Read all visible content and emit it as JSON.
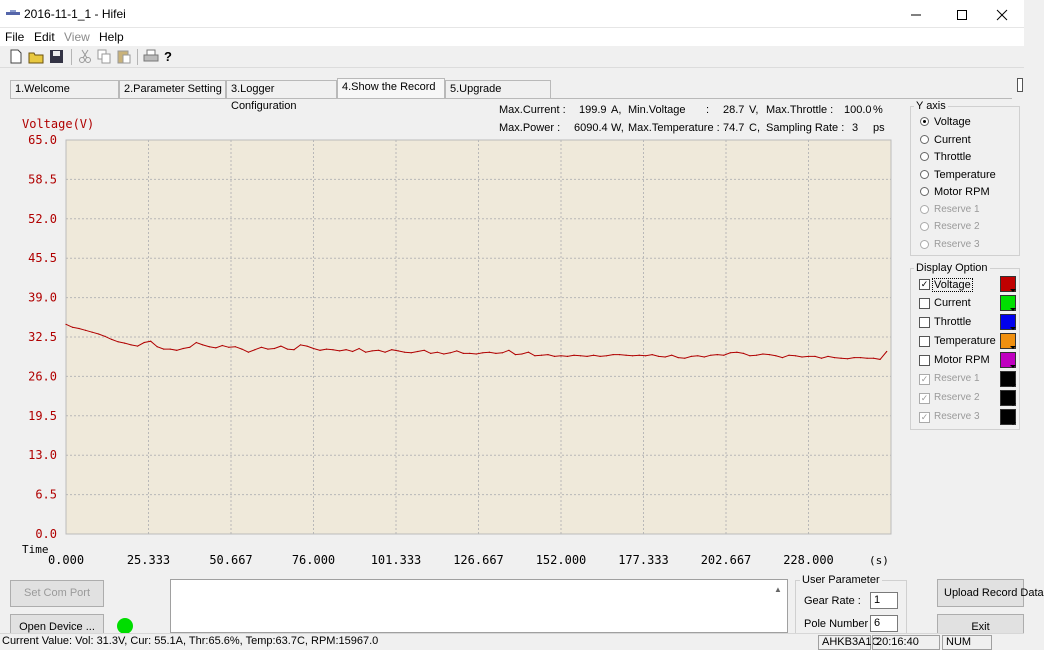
{
  "window": {
    "title": "2016-11-1_1 - Hifei",
    "minimize_icon": "minimize-icon",
    "maximize_icon": "maximize-icon",
    "close_icon": "close-icon"
  },
  "menu": [
    "File",
    "Edit",
    "View",
    "Help"
  ],
  "toolbar_icons": [
    "new-file-icon",
    "open-folder-icon",
    "save-icon",
    "cut-icon",
    "copy-icon",
    "paste-icon",
    "print-icon",
    "help-icon"
  ],
  "tabs": [
    {
      "label": "1.Welcome",
      "active": false
    },
    {
      "label": "2.Parameter Setting",
      "active": false
    },
    {
      "label": "3.Logger Configuration",
      "active": false
    },
    {
      "label": "4.Show the Record",
      "active": true
    },
    {
      "label": "5.Upgrade",
      "active": false
    }
  ],
  "stats": {
    "max_current_label": "Max.Current :",
    "max_current_value": "199.9",
    "max_current_unit": "A,",
    "min_voltage_label": "Min.Voltage",
    "min_voltage_colon": ":",
    "min_voltage_value": "28.7",
    "min_voltage_unit": "V,",
    "max_throttle_label": "Max.Throttle :",
    "max_throttle_value": "100.0",
    "max_throttle_unit": "%",
    "max_power_label": "Max.Power :",
    "max_power_value": "6090.4",
    "max_power_unit": "W,",
    "max_temp_label": "Max.Temperature :",
    "max_temp_value": "74.7",
    "max_temp_unit": "C,",
    "sampling_label": "Sampling Rate :",
    "sampling_value": "3",
    "sampling_unit": "ps"
  },
  "chart_data": {
    "type": "line",
    "ylabel": "Voltage(V)",
    "xlabel": "Time",
    "x_unit": "(s)",
    "yticks": [
      "65.0",
      "58.5",
      "52.0",
      "45.5",
      "39.0",
      "32.5",
      "26.0",
      "19.5",
      "13.0",
      "6.5",
      "0.0"
    ],
    "xticks": [
      "0.000",
      "25.333",
      "50.667",
      "76.000",
      "101.333",
      "126.667",
      "152.000",
      "177.333",
      "202.667",
      "228.000"
    ],
    "xlim": [
      0,
      253.333
    ],
    "ylim": [
      0,
      65.0
    ],
    "grid": true,
    "series": [
      {
        "name": "Voltage",
        "color": "#b00000",
        "x": [
          0,
          2,
          4,
          6,
          8,
          10,
          12,
          14,
          16,
          18,
          20,
          22,
          24,
          26,
          28,
          30,
          32,
          34,
          36,
          38,
          40,
          42,
          44,
          46,
          48,
          50,
          52,
          54,
          56,
          58,
          60,
          62,
          64,
          66,
          68,
          70,
          72,
          74,
          76,
          78,
          80,
          82,
          84,
          86,
          88,
          90,
          92,
          94,
          96,
          98,
          100,
          102,
          104,
          106,
          108,
          110,
          112,
          114,
          116,
          118,
          120,
          122,
          124,
          126,
          128,
          130,
          132,
          134,
          136,
          138,
          140,
          142,
          144,
          146,
          148,
          150,
          152,
          154,
          156,
          158,
          160,
          162,
          164,
          166,
          168,
          170,
          172,
          174,
          176,
          178,
          180,
          182,
          184,
          186,
          188,
          190,
          192,
          194,
          196,
          198,
          200,
          202,
          204,
          206,
          208,
          210,
          212,
          214,
          216,
          218,
          220,
          222,
          224,
          226,
          228,
          230,
          232,
          234,
          236,
          238,
          240,
          242,
          244,
          246,
          248,
          250,
          252
        ],
        "y": [
          34.6,
          34.1,
          33.9,
          33.6,
          33.3,
          33.0,
          32.6,
          32.1,
          31.7,
          31.5,
          31.2,
          31.0,
          31.6,
          31.8,
          30.9,
          30.5,
          30.5,
          30.3,
          30.6,
          30.8,
          31.6,
          31.2,
          30.9,
          30.7,
          31.1,
          30.8,
          30.9,
          30.5,
          30.0,
          30.4,
          30.8,
          30.5,
          30.6,
          31.0,
          30.5,
          30.4,
          31.2,
          31.0,
          30.6,
          30.3,
          30.5,
          30.4,
          30.2,
          30.4,
          30.1,
          30.6,
          30.0,
          30.2,
          30.3,
          30.0,
          30.4,
          30.2,
          30.0,
          29.9,
          30.1,
          30.3,
          29.8,
          30.0,
          29.7,
          29.9,
          30.2,
          29.8,
          29.8,
          29.7,
          29.9,
          30.0,
          29.8,
          29.9,
          30.3,
          29.6,
          29.7,
          30.0,
          29.4,
          29.5,
          29.6,
          29.3,
          29.4,
          29.3,
          29.5,
          29.4,
          29.3,
          29.5,
          29.3,
          29.4,
          29.6,
          29.6,
          29.5,
          29.4,
          29.5,
          29.4,
          29.6,
          29.3,
          29.2,
          29.5,
          29.1,
          29.0,
          29.3,
          29.4,
          29.2,
          29.5,
          29.6,
          29.5,
          29.9,
          30.0,
          29.8,
          29.4,
          29.5,
          29.7,
          29.6,
          29.4,
          29.1,
          29.5,
          29.4,
          29.2,
          29.3,
          29.3,
          29.0,
          29.3,
          29.1,
          29.0,
          28.9,
          29.1,
          29.1,
          29.0,
          29.0,
          28.8,
          30.1
        ]
      }
    ]
  },
  "y_axis": {
    "title": "Y axis",
    "options": [
      {
        "label": "Voltage",
        "selected": true,
        "enabled": true
      },
      {
        "label": "Current",
        "selected": false,
        "enabled": true
      },
      {
        "label": "Throttle",
        "selected": false,
        "enabled": true
      },
      {
        "label": "Temperature",
        "selected": false,
        "enabled": true
      },
      {
        "label": "Motor RPM",
        "selected": false,
        "enabled": true
      },
      {
        "label": "Reserve 1",
        "selected": false,
        "enabled": false
      },
      {
        "label": "Reserve 2",
        "selected": false,
        "enabled": false
      },
      {
        "label": "Reserve 3",
        "selected": false,
        "enabled": false
      }
    ]
  },
  "display_option": {
    "title": "Display Option",
    "items": [
      {
        "label": "Voltage",
        "checked": true,
        "enabled": true,
        "color": "#c00000"
      },
      {
        "label": "Current",
        "checked": false,
        "enabled": true,
        "color": "#00e000"
      },
      {
        "label": "Throttle",
        "checked": false,
        "enabled": true,
        "color": "#0000ee"
      },
      {
        "label": "Temperature",
        "checked": false,
        "enabled": true,
        "color": "#f09010"
      },
      {
        "label": "Motor RPM",
        "checked": false,
        "enabled": true,
        "color": "#c000c0"
      },
      {
        "label": "Reserve 1",
        "checked": true,
        "enabled": false,
        "color": "#000000"
      },
      {
        "label": "Reserve 2",
        "checked": true,
        "enabled": false,
        "color": "#000000"
      },
      {
        "label": "Reserve 3",
        "checked": true,
        "enabled": false,
        "color": "#000000"
      }
    ]
  },
  "bottom": {
    "set_com_port": "Set Com Port",
    "open_device": "Open Device ...",
    "status_light_color": "#00dd00",
    "user_param_title": "User Parameter",
    "gear_rate_label": "Gear Rate :",
    "gear_rate_value": "1",
    "pole_number_label": "Pole Number :",
    "pole_number_value": "6",
    "upload_record": "Upload Record Data",
    "exit": "Exit"
  },
  "statusbar": {
    "current_value": "Current Value: Vol: 31.3V, Cur: 55.1A, Thr:65.6%, Temp:63.7C, RPM:15967.0",
    "device": "AHKB3A1C",
    "time": "20:16:40",
    "num": "NUM"
  }
}
